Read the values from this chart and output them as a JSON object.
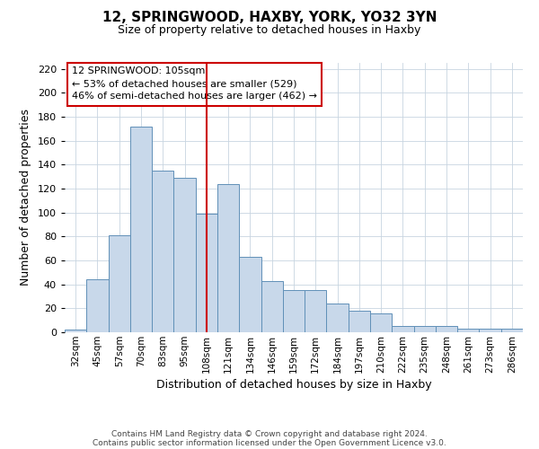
{
  "title": "12, SPRINGWOOD, HAXBY, YORK, YO32 3YN",
  "subtitle": "Size of property relative to detached houses in Haxby",
  "xlabel": "Distribution of detached houses by size in Haxby",
  "ylabel": "Number of detached properties",
  "categories": [
    "32sqm",
    "45sqm",
    "57sqm",
    "70sqm",
    "83sqm",
    "95sqm",
    "108sqm",
    "121sqm",
    "134sqm",
    "146sqm",
    "159sqm",
    "172sqm",
    "184sqm",
    "197sqm",
    "210sqm",
    "222sqm",
    "235sqm",
    "248sqm",
    "261sqm",
    "273sqm",
    "286sqm"
  ],
  "values": [
    2,
    44,
    81,
    172,
    135,
    129,
    99,
    124,
    63,
    43,
    35,
    35,
    24,
    18,
    16,
    5,
    5,
    5,
    3,
    3,
    3
  ],
  "bar_color": "#c8d8ea",
  "bar_edge_color": "#6090b8",
  "ylim": [
    0,
    225
  ],
  "yticks": [
    0,
    20,
    40,
    60,
    80,
    100,
    120,
    140,
    160,
    180,
    200,
    220
  ],
  "vline_x_index": 6,
  "vline_color": "#cc0000",
  "annotation_title": "12 SPRINGWOOD: 105sqm",
  "annotation_line1": "← 53% of detached houses are smaller (529)",
  "annotation_line2": "46% of semi-detached houses are larger (462) →",
  "annotation_box_color": "#cc0000",
  "footer1": "Contains HM Land Registry data © Crown copyright and database right 2024.",
  "footer2": "Contains public sector information licensed under the Open Government Licence v3.0.",
  "background_color": "#ffffff",
  "grid_color": "#c8d4e0"
}
